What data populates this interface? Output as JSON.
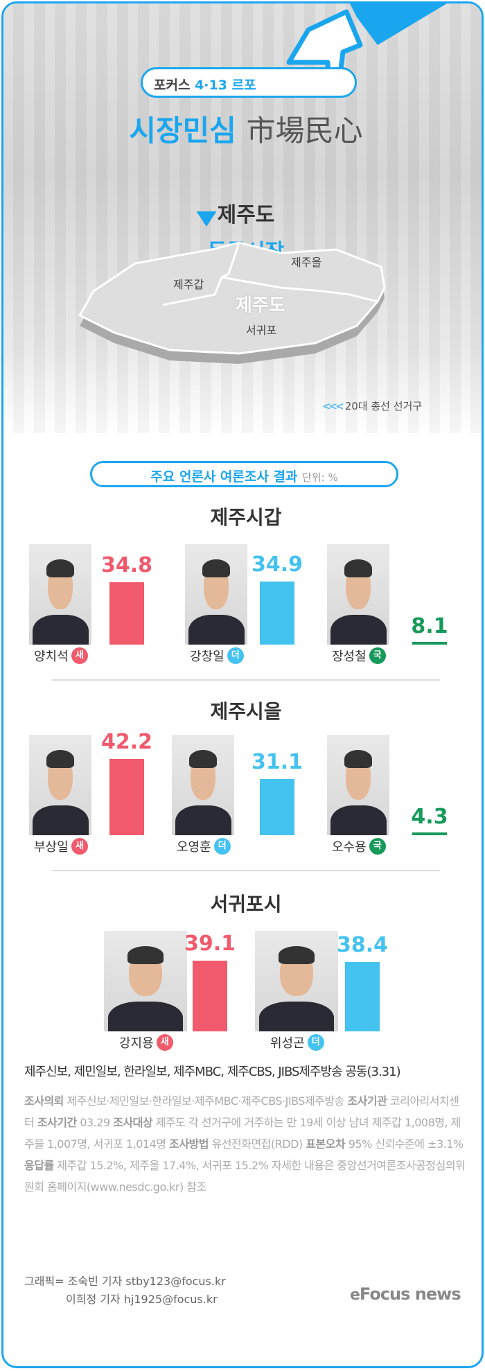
{
  "header": {
    "series_prefix": "포커스",
    "series_date": "4·13",
    "series_suffix": "르포",
    "title": "시장민심",
    "title_hanja": "市場民心",
    "region": "제주도",
    "market": "동문시장"
  },
  "map": {
    "labels": [
      "제주갑",
      "제주을",
      "서귀포"
    ],
    "center_label": "제주도",
    "legend": "20대 총선 선거구",
    "pin_color": "#1aa6ef"
  },
  "section": {
    "title": "주요 언론사 여론조사 결과",
    "unit": "단위: %"
  },
  "colors": {
    "accent": "#1aa6ef",
    "새": "#f05a6c",
    "더": "#44c2f0",
    "국": "#16995a"
  },
  "chart_data": {
    "type": "bar",
    "unit": "%",
    "districts": [
      {
        "name": "제주시갑",
        "candidates": [
          {
            "name": "양치석",
            "party": "새",
            "value": 34.8
          },
          {
            "name": "강창일",
            "party": "더",
            "value": 34.9
          },
          {
            "name": "장성철",
            "party": "국",
            "value": 8.1
          }
        ]
      },
      {
        "name": "제주시을",
        "candidates": [
          {
            "name": "부상일",
            "party": "새",
            "value": 42.2
          },
          {
            "name": "오영훈",
            "party": "더",
            "value": 31.1
          },
          {
            "name": "오수용",
            "party": "국",
            "value": 4.3
          }
        ]
      },
      {
        "name": "서귀포시",
        "candidates": [
          {
            "name": "강지용",
            "party": "새",
            "value": 39.1
          },
          {
            "name": "위성곤",
            "party": "더",
            "value": 38.4
          }
        ]
      }
    ]
  },
  "source": "제주신보, 제민일보, 한라일보, 제주MBC, 제주CBS, JIBS제주방송 공동(3.31)",
  "details": [
    {
      "k": "조사의뢰",
      "v": "제주신보·제민일보·한라일보·제주MBC·제주CBS·JIBS제주방송"
    },
    {
      "k": "조사기관",
      "v": "코리아리서치센터"
    },
    {
      "k": "조사기간",
      "v": "03.29"
    },
    {
      "k": "조사대상",
      "v": "제주도 각 선거구에 거주하는 만 19세 이상 남녀 제주갑 1,008명, 제주을 1,007명, 서귀포 1,014명"
    },
    {
      "k": "조사방법",
      "v": "유선전화면접(RDD)"
    },
    {
      "k": "표본오차",
      "v": "95% 신뢰수준에 ±3.1%"
    },
    {
      "k": "응답률",
      "v": "제주갑 15.2%, 제주을 17.4%, 서귀포 15.2% 자세한 내용은 중앙선거여론조사공정심의위원회 홈페이지(www.nesdc.go.kr) 참조"
    }
  ],
  "credits": [
    "그래픽= 조숙빈 기자 stby123@focus.kr",
    "이희정 기자 hj1925@focus.kr"
  ],
  "logo": "Focus news"
}
